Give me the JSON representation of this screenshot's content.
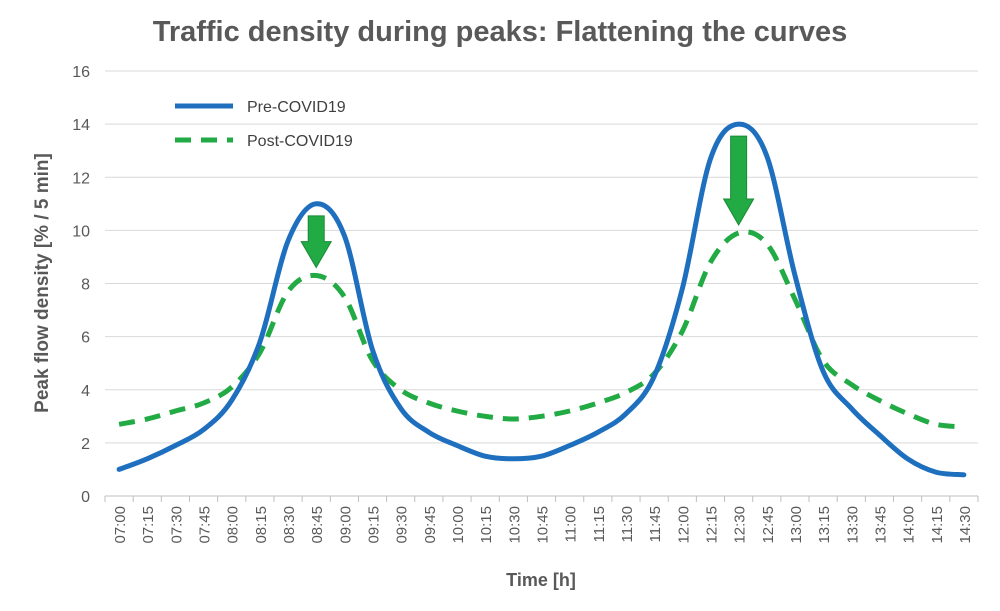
{
  "chart_data": {
    "type": "line",
    "title": "Traffic density during peaks: Flattening the curves",
    "xlabel": "Time [h]",
    "ylabel": "Peak flow density [% / 5 min]",
    "ylim": [
      0,
      16
    ],
    "yticks": [
      0,
      2,
      4,
      6,
      8,
      10,
      12,
      14,
      16
    ],
    "grid": true,
    "legend_position": "top-left",
    "categories": [
      "07:00",
      "07:15",
      "07:30",
      "07:45",
      "08:00",
      "08:15",
      "08:30",
      "08:45",
      "09:00",
      "09:15",
      "09:30",
      "09:45",
      "10:00",
      "10:15",
      "10:30",
      "10:45",
      "11:00",
      "11:15",
      "11:30",
      "11:45",
      "12:00",
      "12:15",
      "12:30",
      "12:45",
      "13:00",
      "13:15",
      "13:30",
      "13:45",
      "14:00",
      "14:15",
      "14:30"
    ],
    "series": [
      {
        "name": "Pre-COVID19",
        "style": "solid",
        "color": "#1f6fbf",
        "values": [
          1.0,
          1.4,
          1.9,
          2.5,
          3.6,
          5.8,
          9.6,
          11.0,
          9.8,
          5.5,
          3.3,
          2.4,
          1.9,
          1.5,
          1.4,
          1.5,
          1.9,
          2.4,
          3.1,
          4.5,
          7.8,
          12.7,
          14.0,
          12.8,
          8.3,
          4.7,
          3.3,
          2.3,
          1.4,
          0.9,
          0.8
        ]
      },
      {
        "name": "Post-COVID19",
        "style": "dashed",
        "color": "#22aa44",
        "values": [
          2.7,
          2.9,
          3.2,
          3.5,
          4.1,
          5.4,
          7.7,
          8.3,
          7.5,
          5.1,
          4.0,
          3.5,
          3.2,
          3.0,
          2.9,
          3.0,
          3.2,
          3.5,
          3.9,
          4.6,
          6.2,
          8.8,
          9.9,
          9.5,
          7.4,
          5.1,
          4.2,
          3.6,
          3.1,
          2.7,
          2.6
        ]
      }
    ],
    "annotations": [
      {
        "type": "down-arrow",
        "x": "08:45",
        "color": "#22aa44"
      },
      {
        "type": "down-arrow",
        "x": "12:30",
        "color": "#22aa44"
      }
    ]
  }
}
